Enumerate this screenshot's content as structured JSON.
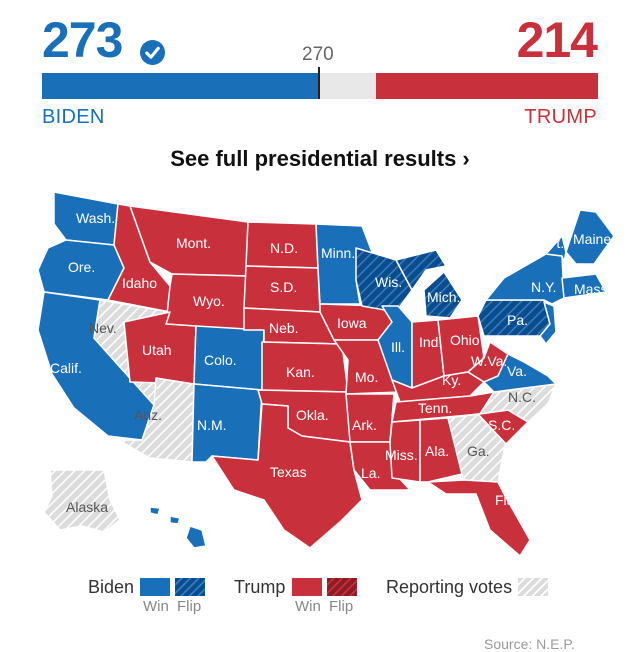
{
  "header": {
    "biden_votes": "273",
    "trump_votes": "214",
    "threshold": "270",
    "biden_label": "BIDEN",
    "trump_label": "TRUMP",
    "results_link": "See full presidential results ›",
    "biden_fraction": 0.497,
    "trump_fraction": 0.399,
    "threshold_fraction": 0.498
  },
  "colors": {
    "biden": "#1a6fb9",
    "biden_flip": "#0c4c8a",
    "trump": "#c8313b",
    "trump_flip": "#8c1d25",
    "reporting": "#dcdcdc",
    "border": "#ffffff"
  },
  "map": {
    "states": [
      {
        "label": "Wash.",
        "status": "biden"
      },
      {
        "label": "Ore.",
        "status": "biden"
      },
      {
        "label": "Calif.",
        "status": "biden"
      },
      {
        "label": "Nev.",
        "status": "reporting"
      },
      {
        "label": "Idaho",
        "status": "trump"
      },
      {
        "label": "Mont.",
        "status": "trump"
      },
      {
        "label": "Wyo.",
        "status": "trump"
      },
      {
        "label": "Utah",
        "status": "trump"
      },
      {
        "label": "Ariz.",
        "status": "reporting"
      },
      {
        "label": "Colo.",
        "status": "biden"
      },
      {
        "label": "N.M.",
        "status": "biden"
      },
      {
        "label": "N.D.",
        "status": "trump"
      },
      {
        "label": "S.D.",
        "status": "trump"
      },
      {
        "label": "Neb.",
        "status": "trump"
      },
      {
        "label": "Kan.",
        "status": "trump"
      },
      {
        "label": "Okla.",
        "status": "trump"
      },
      {
        "label": "Texas",
        "status": "trump"
      },
      {
        "label": "Minn.",
        "status": "biden"
      },
      {
        "label": "Iowa",
        "status": "trump"
      },
      {
        "label": "Mo.",
        "status": "trump"
      },
      {
        "label": "Ark.",
        "status": "trump"
      },
      {
        "label": "La.",
        "status": "trump"
      },
      {
        "label": "Wis.",
        "status": "biden_flip"
      },
      {
        "label": "Ill.",
        "status": "biden"
      },
      {
        "label": "Mich.",
        "status": "biden_flip"
      },
      {
        "label": "Ind.",
        "status": "trump"
      },
      {
        "label": "Ohio",
        "status": "trump"
      },
      {
        "label": "Ky.",
        "status": "trump"
      },
      {
        "label": "Tenn.",
        "status": "trump"
      },
      {
        "label": "Miss.",
        "status": "trump"
      },
      {
        "label": "Ala.",
        "status": "trump"
      },
      {
        "label": "Ga.",
        "status": "reporting"
      },
      {
        "label": "Fla.",
        "status": "trump"
      },
      {
        "label": "S.C.",
        "status": "trump"
      },
      {
        "label": "N.C.",
        "status": "reporting"
      },
      {
        "label": "W.Va.",
        "status": "trump"
      },
      {
        "label": "Va.",
        "status": "biden"
      },
      {
        "label": "Pa.",
        "status": "biden_flip"
      },
      {
        "label": "N.Y.",
        "status": "biden"
      },
      {
        "label": "N.J.",
        "status": "biden"
      },
      {
        "label": "Vt.",
        "status": "biden"
      },
      {
        "label": "Maine",
        "status": "biden"
      },
      {
        "label": "Mass.",
        "status": "biden"
      },
      {
        "label": "Alaska",
        "status": "reporting"
      },
      {
        "label": "Hawaii",
        "status": "biden"
      }
    ]
  },
  "legend": {
    "biden": "Biden",
    "trump": "Trump",
    "reporting": "Reporting votes",
    "win": "Win",
    "flip": "Flip"
  },
  "source": "Source: N.E.P."
}
